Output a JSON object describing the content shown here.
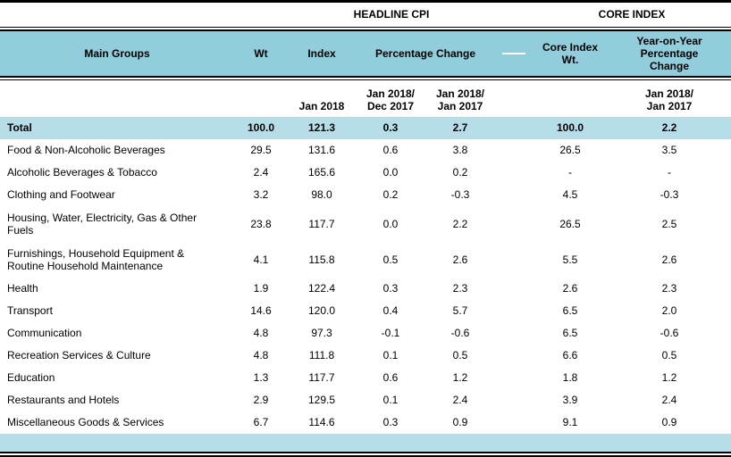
{
  "table": {
    "group_headers": {
      "headline": "HEADLINE CPI",
      "core": "CORE INDEX"
    },
    "columns": {
      "main_groups": "Main Groups",
      "wt": "Wt",
      "index": "Index",
      "percentage_change": "Percentage Change",
      "core_index_wt": "Core Index\nWt.",
      "yoy_percentage_change": "Year-on-Year\nPercentage\nChange"
    },
    "sub_headers": {
      "index_period": "Jan 2018",
      "mom_period": "Jan 2018/\nDec 2017",
      "yoy_period": "Jan 2018/\nJan 2017",
      "core_yoy_period": "Jan 2018/\nJan 2017"
    },
    "rows": [
      {
        "name": "Total",
        "wt": "100.0",
        "index": "121.3",
        "mom": "0.3",
        "yoy": "2.7",
        "core_wt": "100.0",
        "core_yoy": "2.2"
      },
      {
        "name": "Food & Non-Alcoholic Beverages",
        "wt": "29.5",
        "index": "131.6",
        "mom": "0.6",
        "yoy": "3.8",
        "core_wt": "26.5",
        "core_yoy": "3.5"
      },
      {
        "name": "Alcoholic Beverages & Tobacco",
        "wt": "2.4",
        "index": "165.6",
        "mom": "0.0",
        "yoy": "0.2",
        "core_wt": "-",
        "core_yoy": "-"
      },
      {
        "name": "Clothing and Footwear",
        "wt": "3.2",
        "index": "98.0",
        "mom": "0.2",
        "yoy": "-0.3",
        "core_wt": "4.5",
        "core_yoy": "-0.3"
      },
      {
        "name": "Housing, Water, Electricity, Gas & Other Fuels",
        "wt": "23.8",
        "index": "117.7",
        "mom": "0.0",
        "yoy": "2.2",
        "core_wt": "26.5",
        "core_yoy": "2.5"
      },
      {
        "name": "Furnishings, Household Equipment  & Routine Household Maintenance",
        "wt": "4.1",
        "index": "115.8",
        "mom": "0.5",
        "yoy": "2.6",
        "core_wt": "5.5",
        "core_yoy": "2.6"
      },
      {
        "name": "Health",
        "wt": "1.9",
        "index": "122.4",
        "mom": "0.3",
        "yoy": "2.3",
        "core_wt": "2.6",
        "core_yoy": "2.3"
      },
      {
        "name": "Transport",
        "wt": "14.6",
        "index": "120.0",
        "mom": "0.4",
        "yoy": "5.7",
        "core_wt": "6.5",
        "core_yoy": "2.0"
      },
      {
        "name": "Communication",
        "wt": "4.8",
        "index": "97.3",
        "mom": "-0.1",
        "yoy": "-0.6",
        "core_wt": "6.5",
        "core_yoy": "-0.6"
      },
      {
        "name": "Recreation Services & Culture",
        "wt": "4.8",
        "index": "111.8",
        "mom": "0.1",
        "yoy": "0.5",
        "core_wt": "6.6",
        "core_yoy": "0.5"
      },
      {
        "name": "Education",
        "wt": "1.3",
        "index": "117.7",
        "mom": "0.6",
        "yoy": "1.2",
        "core_wt": "1.8",
        "core_yoy": "1.2"
      },
      {
        "name": "Restaurants and Hotels",
        "wt": "2.9",
        "index": "129.5",
        "mom": "0.1",
        "yoy": "2.4",
        "core_wt": "3.9",
        "core_yoy": "2.4"
      },
      {
        "name": "Miscellaneous Goods & Services",
        "wt": "6.7",
        "index": "114.6",
        "mom": "0.3",
        "yoy": "0.9",
        "core_wt": "9.1",
        "core_yoy": "0.9"
      }
    ]
  },
  "colors": {
    "header_bg": "#92CDDC",
    "total_row_bg": "#B7DEE8",
    "footer_bg": "#B7DEE8",
    "border": "#000000"
  }
}
